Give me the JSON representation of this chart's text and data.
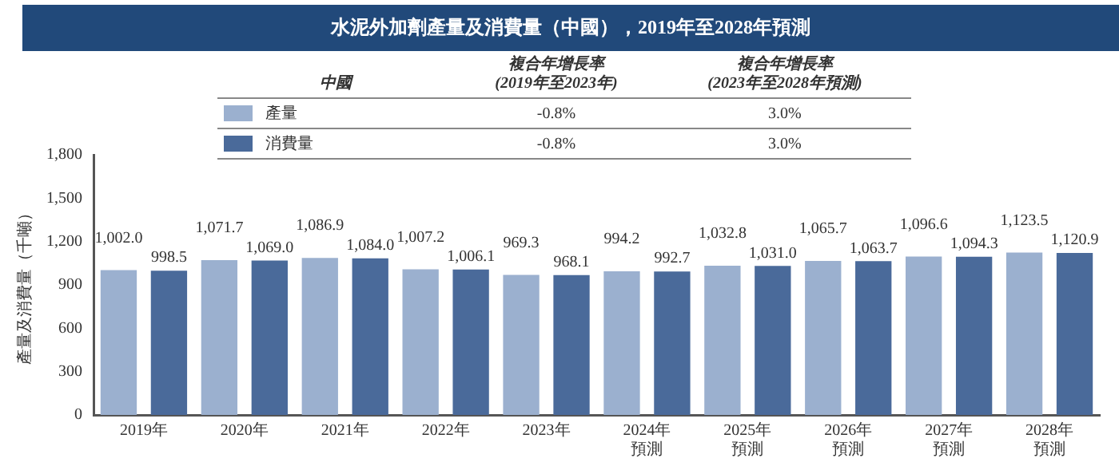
{
  "chart_data": {
    "type": "bar",
    "title": "水泥外加劑產量及消費量（中國），2019年至2028年預測",
    "ylabel": "產量及消費量（千噸）",
    "categories": [
      "2019年",
      "2020年",
      "2021年",
      "2022年",
      "2023年",
      "2024年預測",
      "2025年預測",
      "2026年預測",
      "2027年預測",
      "2028年預測"
    ],
    "series": [
      {
        "name": "產量",
        "color": "#9bb0cf",
        "values": [
          1002.0,
          1071.7,
          1086.9,
          1007.2,
          969.3,
          994.2,
          1032.8,
          1065.7,
          1096.6,
          1123.5
        ],
        "value_labels": [
          "1,002.0",
          "1,071.7",
          "1,086.9",
          "1,007.2",
          "969.3",
          "994.2",
          "1,032.8",
          "1,065.7",
          "1,096.6",
          "1,123.5"
        ]
      },
      {
        "name": "消費量",
        "color": "#4a6a9a",
        "values": [
          998.5,
          1069.0,
          1084.0,
          1006.1,
          968.1,
          992.7,
          1031.0,
          1063.7,
          1094.3,
          1120.9
        ],
        "value_labels": [
          "998.5",
          "1,069.0",
          "1,084.0",
          "1,006.1",
          "968.1",
          "992.7",
          "1,031.0",
          "1,063.7",
          "1,094.3",
          "1,120.9"
        ]
      }
    ],
    "annotations": [
      "中國",
      "複合年增長率\n(2019年至2023年)",
      "複合年增長率\n(2023年至2028年預測)",
      "-0.8%",
      "3.0%",
      "-0.8%",
      "3.0%"
    ],
    "ylim": [
      0,
      1800
    ],
    "yticks": [
      0,
      300,
      600,
      900,
      {
        "value": 1200,
        "label": "1,200"
      },
      {
        "value": 1500,
        "label": "1,500"
      },
      {
        "value": 1800,
        "label": "1,800"
      }
    ],
    "grid": false,
    "legend": "top"
  }
}
